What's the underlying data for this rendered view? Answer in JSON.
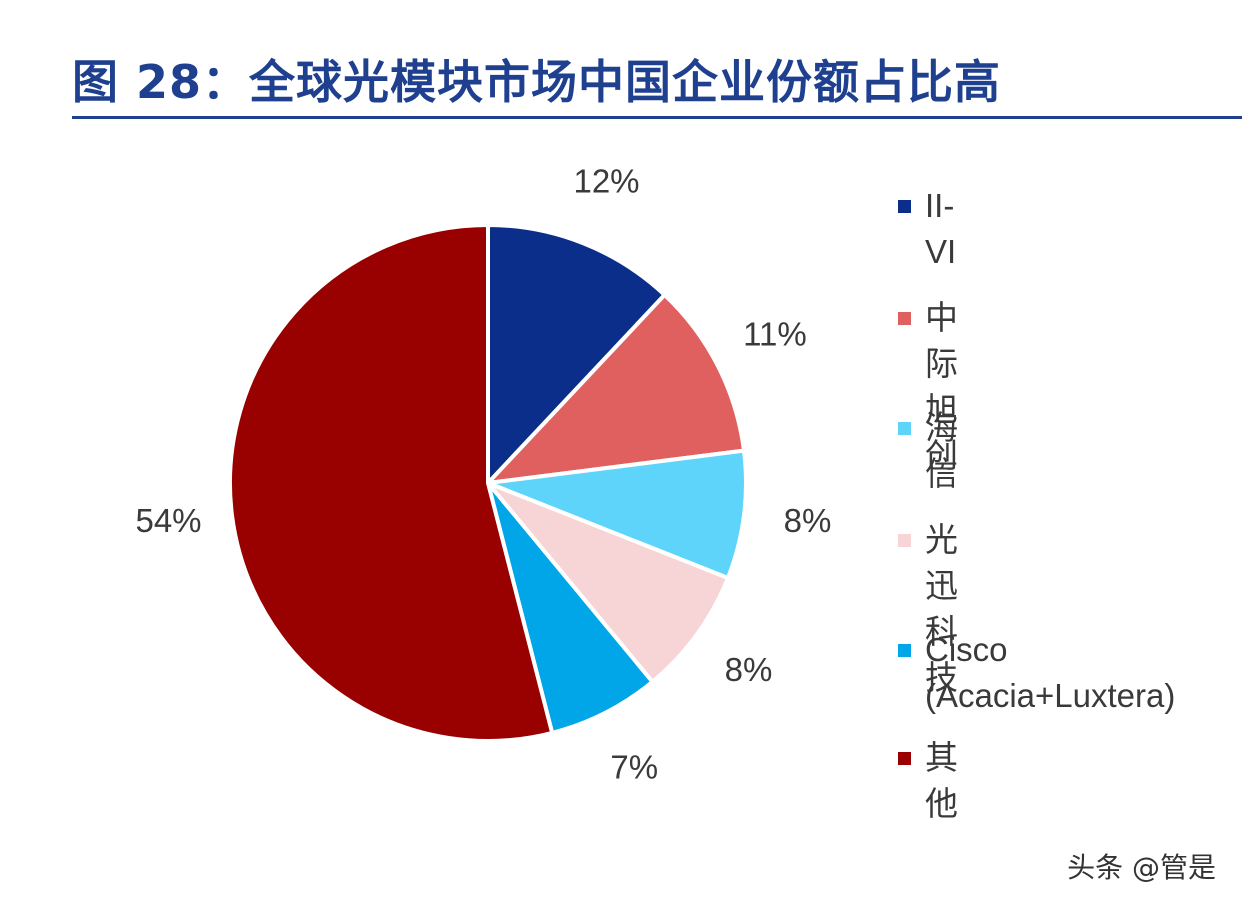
{
  "title": "图 28：全球光模块市场中国企业份额占比高",
  "watermark": "头条 @管是",
  "chart_data": {
    "type": "pie",
    "title": "图 28：全球光模块市场中国企业份额占比高",
    "start_angle": "12 o'clock",
    "direction": "clockwise",
    "legend_placement": "right",
    "slices": [
      {
        "name": "II-VI",
        "value": 12,
        "label": "12%",
        "color": "#0a2e8a"
      },
      {
        "name": "中际旭创",
        "value": 11,
        "label": "11%",
        "color": "#e06060"
      },
      {
        "name": "海信",
        "value": 8,
        "label": "8%",
        "color": "#5fd4fb"
      },
      {
        "name": "光迅科技",
        "value": 8,
        "label": "8%",
        "color": "#f7d4d6"
      },
      {
        "name": "Cisco\n(Acacia+Luxtera)",
        "value": 7,
        "label": "7%",
        "color": "#00a6e8"
      },
      {
        "name": "其他",
        "value": 54,
        "label": "54%",
        "color": "#990000"
      }
    ]
  }
}
